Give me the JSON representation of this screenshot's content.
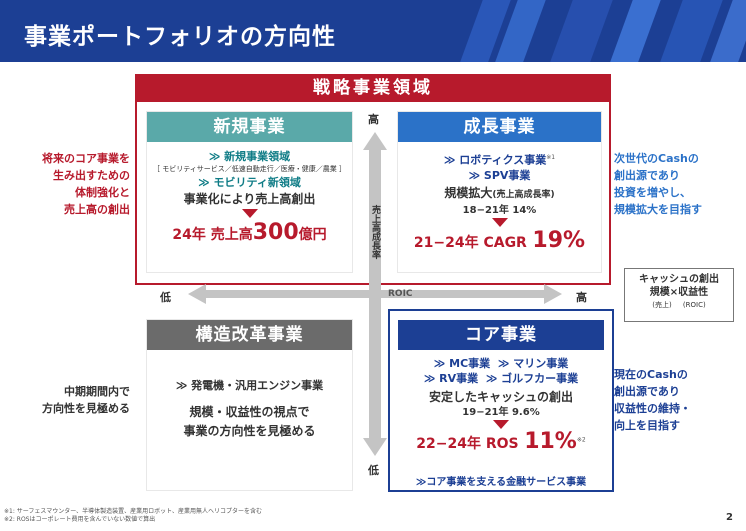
{
  "title": "事業ポートフォリオの方向性",
  "strategic_banner": "戦略事業領域",
  "new_business": {
    "header": "新規事業",
    "line1": "≫ 新規事業領域",
    "line2": "［ モビリティサービス／低速自動走行／医療・健康／農業 ］",
    "line3": "≫ モビリティ新領域",
    "line4": "事業化により売上高創出",
    "target_prefix": "24年 売上高",
    "target_value": "300",
    "target_unit": "億円"
  },
  "growth_business": {
    "header": "成長事業",
    "line1": "≫ ロボティクス事業",
    "line1_note": "※1",
    "line2": "≫ SPV事業",
    "line3": "規模拡大",
    "line3_sub": "(売上高成長率)",
    "line4": "18−21年 14%",
    "target_prefix": "21−24年 CAGR",
    "target_value": "19%"
  },
  "restructure_business": {
    "header": "構造改革事業",
    "line1": "≫ 発電機・汎用エンジン事業",
    "line2": "規模・収益性の視点で",
    "line3": "事業の方向性を見極める"
  },
  "core_business": {
    "header": "コア事業",
    "line1a": "≫ MC事業",
    "line1b": "≫ マリン事業",
    "line2a": "≫ RV事業",
    "line2b": "≫ ゴルフカー事業",
    "line3": "安定したキャッシュの創出",
    "line4": "19−21年 9.6%",
    "target_prefix": "22−24年 ROS",
    "target_value": "11%",
    "target_note": "※2",
    "footer": "≫コア事業を支える金融サービス事業"
  },
  "left_top_note": [
    "将来のコア事業を",
    "生み出すための",
    "体制強化と",
    "売上高の創出"
  ],
  "left_bottom_note": [
    "中期期間内で",
    "方向性を見極める"
  ],
  "right_top_note": [
    "次世代のCashの",
    "創出源であり",
    "投資を増やし、",
    "規模拡大を目指す"
  ],
  "right_bottom_note": [
    "現在のCashの",
    "創出源であり",
    "収益性の維持・",
    "向上を目指す"
  ],
  "legend": {
    "line1": "キャッシュの創出",
    "line2": "規模×収益性",
    "line3a": "(売上)",
    "line3b": "(ROIC)"
  },
  "axes": {
    "y_high": "高",
    "y_low": "低",
    "y_label": "売上高成長率",
    "x_low": "低",
    "x_high": "高",
    "x_label": "ROIC"
  },
  "footnotes": [
    "※1: サーフェスマウンター、半導体製造装置、産業用ロボット、産業用無人ヘリコプターを含む",
    "※2: ROSはコーポレート費用を含んでいない数値で算出"
  ],
  "page_number": "2",
  "colors": {
    "navy": "#1c3f94",
    "red": "#b71a2c",
    "teal": "#5aa9a9",
    "blue": "#2b72c8",
    "gray": "#6b6b6b",
    "core_blue": "#1c3f94"
  }
}
